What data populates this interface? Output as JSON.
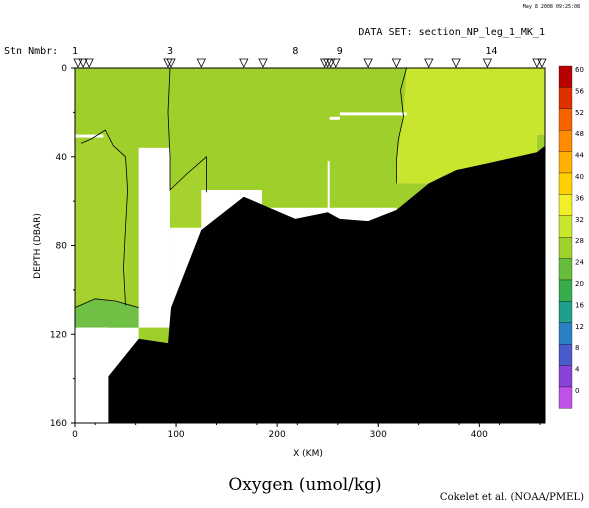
{
  "header": {
    "timestamp": "May 8 2008 09:25:08",
    "dataset": "DATA SET: section_NP_leg_1_MK_1",
    "stn_label": "Stn Nmbr:"
  },
  "footer": {
    "title": "Oxygen (umol/kg)",
    "credit": "Cokelet et al. (NOAA/PMEL)"
  },
  "colors": {
    "light_green": "#9fcf2a",
    "mid_green": "#a6d22e",
    "yellow_green": "#c8e62e",
    "lower_green": "#6fc044",
    "land": "#000000"
  },
  "chart_data": {
    "type": "heatmap",
    "title": "Oxygen (umol/kg)",
    "xlabel": "X (KM)",
    "ylabel": "DEPTH (DBAR)",
    "xlim": [
      0,
      465
    ],
    "ylim": [
      0,
      160
    ],
    "y_inverted": true,
    "x_ticks": [
      "0",
      "100",
      "200",
      "300",
      "400"
    ],
    "y_ticks": [
      "0",
      "40",
      "80",
      "120",
      "160"
    ],
    "station_numbers": [
      {
        "label": "1",
        "x": 0
      },
      {
        "label": "3",
        "x": 94
      },
      {
        "label": "8",
        "x": 218
      },
      {
        "label": "9",
        "x": 262
      },
      {
        "label": "14",
        "x": 412
      }
    ],
    "station_markers_x": [
      3,
      8,
      14,
      92,
      95,
      125,
      167,
      186,
      247,
      250,
      253,
      258,
      290,
      318,
      350,
      377,
      408,
      457,
      462
    ],
    "colorbar": {
      "levels": [
        "60",
        "56",
        "52",
        "48",
        "44",
        "40",
        "36",
        "32",
        "28",
        "24",
        "20",
        "16",
        "12",
        "8",
        "4",
        "0"
      ],
      "colors": [
        "#b80000",
        "#e03000",
        "#f86000",
        "#ff8c00",
        "#ffb000",
        "#ffd000",
        "#f2ee28",
        "#c8e62e",
        "#9fd12a",
        "#66bd3c",
        "#38ad4e",
        "#20a08a",
        "#2b80c4",
        "#4a5ccc",
        "#8844d8",
        "#c050e8"
      ]
    },
    "bathymetry": [
      [
        33,
        139
      ],
      [
        63,
        122
      ],
      [
        92,
        124
      ],
      [
        95,
        108
      ],
      [
        125,
        73
      ],
      [
        167,
        58
      ],
      [
        218,
        68
      ],
      [
        250,
        65
      ],
      [
        262,
        68
      ],
      [
        290,
        69
      ],
      [
        318,
        64
      ],
      [
        350,
        52
      ],
      [
        377,
        46
      ],
      [
        408,
        43
      ],
      [
        457,
        38
      ],
      [
        465,
        35
      ]
    ]
  }
}
